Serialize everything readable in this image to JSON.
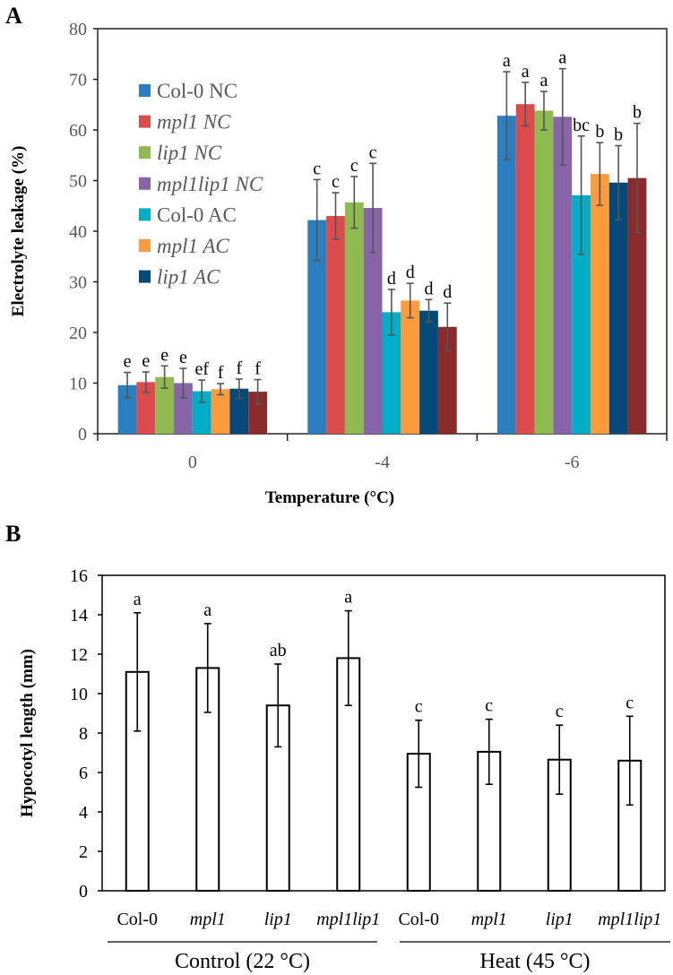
{
  "chart_data": [
    {
      "panel_label": "A",
      "type": "bar",
      "xlabel": "Temperature (°C)",
      "ylabel": "Electrolyte leakage (%)",
      "ylim": [
        0,
        80
      ],
      "yticks": [
        "0",
        "10",
        "20",
        "30",
        "40",
        "50",
        "60",
        "70",
        "80"
      ],
      "categories": [
        "0",
        "-4",
        "-6"
      ],
      "legend_placement": "top-left",
      "series": [
        {
          "name": "Col-0 NC",
          "italic_part": "",
          "color": "#2a7fc1",
          "values": [
            9.6,
            42.2,
            62.8
          ],
          "errors": [
            2.5,
            8.0,
            8.7
          ],
          "letters": [
            "e",
            "c",
            "a"
          ]
        },
        {
          "name": "mpl1 NC",
          "italic": true,
          "color": "#dc4c4c",
          "values": [
            10.2,
            43.0,
            65.1
          ],
          "errors": [
            2.0,
            4.6,
            4.3
          ],
          "letters": [
            "e",
            "c",
            "a"
          ]
        },
        {
          "name": "lip1 NC",
          "italic": true,
          "color": "#8fba4f",
          "values": [
            11.2,
            45.7,
            63.8
          ],
          "errors": [
            2.2,
            5.1,
            3.8
          ],
          "letters": [
            "e",
            "c",
            "a"
          ]
        },
        {
          "name": "mpl1lip1 NC",
          "italic": true,
          "color": "#8865a8",
          "values": [
            10.0,
            44.6,
            62.6
          ],
          "errors": [
            2.9,
            8.8,
            9.5
          ],
          "letters": [
            "e",
            "c",
            "a"
          ]
        },
        {
          "name": "Col-0 AC",
          "color": "#00aec8",
          "values": [
            8.4,
            24.0,
            47.1
          ],
          "errors": [
            2.2,
            4.5,
            11.7
          ],
          "letters": [
            "ef",
            "d",
            "bc"
          ]
        },
        {
          "name": "mpl1 AC",
          "italic": true,
          "color": "#fd9a3c",
          "values": [
            8.8,
            26.3,
            51.3
          ],
          "errors": [
            1.1,
            3.4,
            6.2
          ],
          "letters": [
            "f",
            "d",
            "b"
          ]
        },
        {
          "name": "lip1 AC",
          "italic": true,
          "color": "#034a78",
          "values": [
            8.9,
            24.3,
            49.6
          ],
          "errors": [
            1.9,
            2.2,
            7.3
          ],
          "letters": [
            "f",
            "d",
            "b"
          ]
        },
        {
          "name": "",
          "color": "#8a2a2a",
          "values": [
            8.3,
            21.1,
            50.5
          ],
          "errors": [
            2.4,
            4.7,
            10.8
          ],
          "letters": [
            "f",
            "d",
            "b"
          ]
        }
      ]
    },
    {
      "panel_label": "B",
      "type": "bar",
      "ylabel": "Hypocotyl length (mm)",
      "ylim": [
        0,
        16
      ],
      "yticks": [
        "0",
        "2",
        "4",
        "6",
        "8",
        "10",
        "12",
        "14",
        "16"
      ],
      "categories": [
        "Col-0",
        "mpl1",
        "lip1",
        "mpl1lip1",
        "Col-0",
        "mpl1",
        "lip1",
        "mpl1lip1"
      ],
      "category_italic": [
        false,
        true,
        true,
        true,
        false,
        true,
        true,
        true
      ],
      "groups": [
        "Control (22 °C)",
        "Heat (45 °C)"
      ],
      "values": [
        11.1,
        11.3,
        9.4,
        11.8,
        6.95,
        7.05,
        6.65,
        6.6
      ],
      "errors": [
        3.0,
        2.25,
        2.1,
        2.4,
        1.7,
        1.65,
        1.75,
        2.25
      ],
      "letters": [
        "a",
        "a",
        "ab",
        "a",
        "c",
        "c",
        "c",
        "c"
      ]
    }
  ]
}
